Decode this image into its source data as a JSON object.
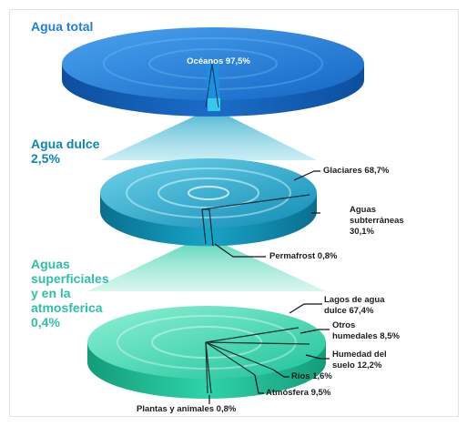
{
  "sections": {
    "total": {
      "title": "Agua total"
    },
    "dulce": {
      "title_line1": "Agua dulce",
      "title_line2": "2,5%"
    },
    "superficial": {
      "title_line1": "Aguas superficiales",
      "title_line2": "y en la",
      "title_line3": "atmosferica",
      "title_line4": "0,4%"
    }
  },
  "labels": {
    "oceanos": "Océanos 97,5%",
    "glaciares": "Glaciares 68,7%",
    "subterraneas_l1": "Aguas",
    "subterraneas_l2": "subterráneas",
    "subterraneas_l3": "30,1%",
    "permafrost": "Permafrost 0,8%",
    "lagos_l1": "Lagos de agua",
    "lagos_l2": "dulce 67,4%",
    "humedales_l1": "Otros",
    "humedales_l2": "humedales 8,5%",
    "humedad_l1": "Humedad del",
    "humedad_l2": "suelo 12,2%",
    "rios": "Ríos 1,6%",
    "atmosfera": "Atmósfera 9,5%",
    "plantas": "Plantas y animales 0,8%"
  },
  "colors": {
    "total_disc": "#1f7fd6",
    "dulce_disc": "#20a5c8",
    "superficial_disc": "#35d6b0"
  }
}
